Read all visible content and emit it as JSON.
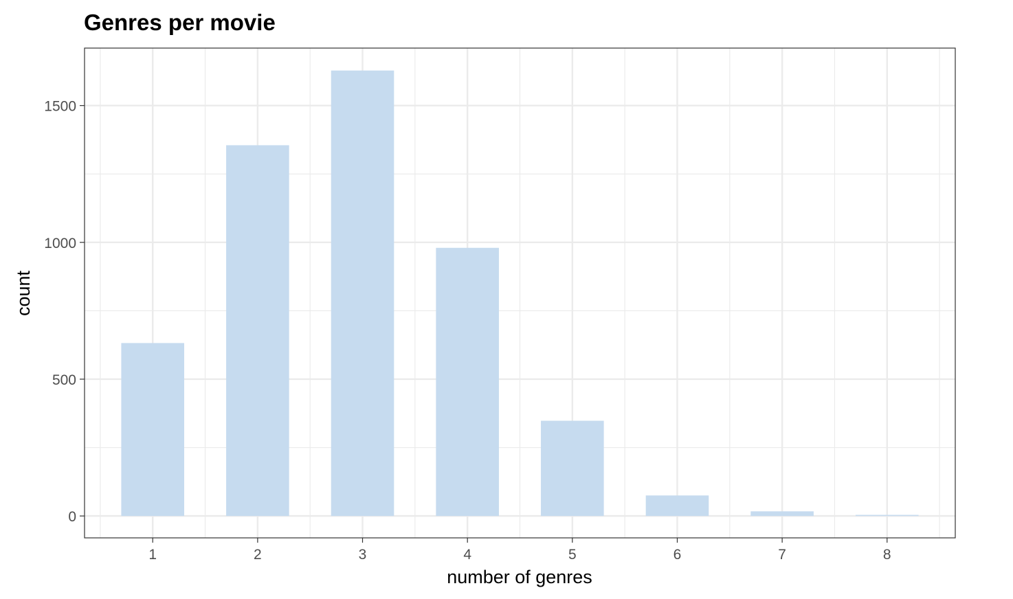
{
  "chart_data": {
    "type": "bar",
    "title": "Genres per movie",
    "xlabel": "number of genres",
    "ylabel": "count",
    "categories": [
      "1",
      "2",
      "3",
      "4",
      "5",
      "6",
      "7",
      "8"
    ],
    "values": [
      632,
      1355,
      1628,
      980,
      348,
      75,
      17,
      4
    ],
    "xlim": [
      0.35,
      8.65
    ],
    "ylim": [
      -80,
      1710
    ],
    "yticks": [
      0,
      500,
      1000,
      1500
    ],
    "grid": true,
    "bar_color": "#c6dbef",
    "panel_border_color": "#333333",
    "grid_color": "#ebebeb"
  }
}
